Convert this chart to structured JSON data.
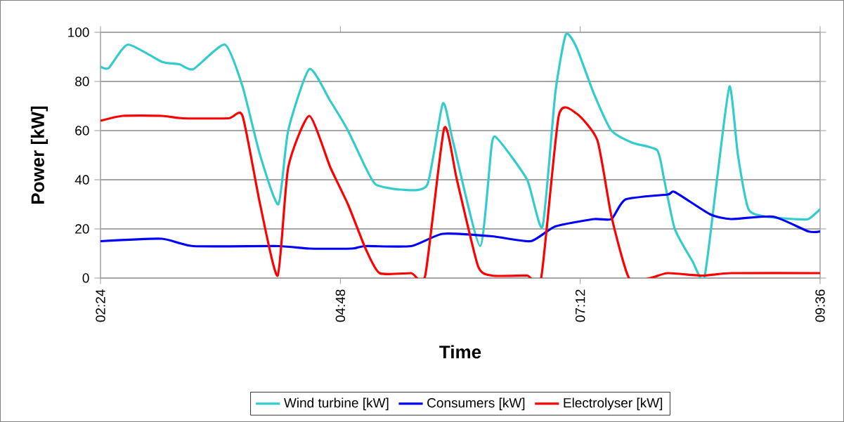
{
  "chart_data": {
    "type": "line",
    "xlabel": "Time",
    "ylabel": "Power [kW]",
    "xlim": [
      2.4,
      9.6
    ],
    "xticks": [
      {
        "value": 2.4,
        "label": "02:24"
      },
      {
        "value": 4.8,
        "label": "04:48"
      },
      {
        "value": 7.2,
        "label": "07:12"
      },
      {
        "value": 9.6,
        "label": "09:36"
      }
    ],
    "ylim": [
      0,
      100
    ],
    "yticks": [
      0,
      20,
      40,
      60,
      80,
      100
    ],
    "grid": "y",
    "legend": "bottom",
    "marker": "none",
    "line_style": "solid",
    "series": [
      {
        "name": "Wind turbine [kW]",
        "color": "#33cccc",
        "x": [
          2.4,
          2.484,
          2.674,
          3.012,
          3.188,
          3.329,
          3.645,
          3.821,
          3.997,
          4.18,
          4.278,
          4.489,
          4.7,
          4.876,
          5.052,
          5.157,
          5.403,
          5.67,
          5.825,
          5.93,
          6.198,
          6.317,
          6.387,
          6.669,
          6.823,
          6.95,
          7.055,
          7.161,
          7.337,
          7.513,
          7.724,
          7.97,
          8.04,
          8.146,
          8.321,
          8.441,
          8.568,
          8.694,
          8.778,
          8.884,
          9.06,
          9.341,
          9.482,
          9.6
        ],
        "values": [
          86,
          85.5,
          95,
          88,
          87,
          85,
          95,
          78,
          50,
          30,
          60,
          85,
          72,
          60,
          45,
          38,
          36,
          38,
          71,
          55,
          13,
          55,
          56,
          40,
          21,
          75,
          99,
          94,
          75,
          60,
          55,
          52,
          40,
          20,
          7,
          0,
          40,
          78,
          50,
          28,
          25,
          24,
          24,
          28
        ]
      },
      {
        "name": "Consumers [kW]",
        "color": "#0000ff",
        "x": [
          2.4,
          3.012,
          3.329,
          4.18,
          4.489,
          4.911,
          5.052,
          5.508,
          5.825,
          6.317,
          6.704,
          6.95,
          7.337,
          7.513,
          7.653,
          8.075,
          8.146,
          8.497,
          8.708,
          9.13,
          9.482,
          9.6
        ],
        "values": [
          15,
          16,
          13,
          13,
          12,
          12,
          13,
          13,
          18,
          17,
          15,
          21,
          24,
          24,
          32,
          34,
          35,
          26,
          24,
          25,
          19,
          19
        ]
      },
      {
        "name": "Electrolyser [kW]",
        "color": "#ff0000",
        "x": [
          2.4,
          2.625,
          3.012,
          3.223,
          3.68,
          3.821,
          3.997,
          4.173,
          4.278,
          4.489,
          4.7,
          4.876,
          5.052,
          5.192,
          5.508,
          5.649,
          5.839,
          5.966,
          6.176,
          6.317,
          6.669,
          6.809,
          6.985,
          7.161,
          7.372,
          7.513,
          7.688,
          7.899,
          8.075,
          8.427,
          8.708,
          9.6
        ],
        "values": [
          64,
          66,
          66,
          65,
          65,
          66,
          30,
          1,
          45,
          66,
          45,
          30,
          12,
          2,
          2,
          1,
          61,
          40,
          5,
          1,
          1,
          0,
          66,
          67,
          56,
          25,
          0,
          0,
          2,
          1,
          2,
          2
        ]
      }
    ]
  }
}
